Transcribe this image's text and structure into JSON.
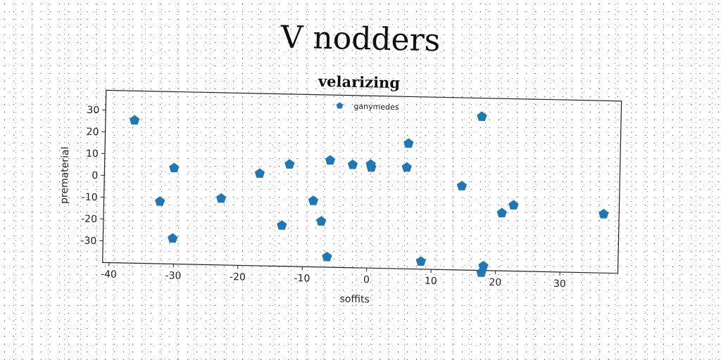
{
  "page": {
    "title": "V nodders"
  },
  "chart_data": {
    "type": "scatter",
    "title": "velarizing",
    "xlabel": "soffits",
    "ylabel": "prematerial",
    "xlim": [
      -41,
      39
    ],
    "ylim": [
      -40,
      39
    ],
    "xticks": [
      -40,
      -30,
      -20,
      -10,
      0,
      10,
      20,
      30
    ],
    "yticks": [
      -30,
      -20,
      -10,
      0,
      10,
      20,
      30
    ],
    "grid": false,
    "legend_position": "top-center",
    "marker": "pentagon",
    "series": [
      {
        "name": "ganymedes",
        "color": "#1f77b4",
        "points": [
          {
            "x": -36.5,
            "y": 25.5
          },
          {
            "x": -30.2,
            "y": 4.0
          },
          {
            "x": -32.3,
            "y": -11.5
          },
          {
            "x": -30.2,
            "y": -28.3
          },
          {
            "x": -22.8,
            "y": -9.5
          },
          {
            "x": -16.9,
            "y": 2.3
          },
          {
            "x": -12.3,
            "y": 6.8
          },
          {
            "x": -13.3,
            "y": -21.3
          },
          {
            "x": -8.5,
            "y": -9.7
          },
          {
            "x": -7.2,
            "y": -19.0
          },
          {
            "x": -6.0,
            "y": 9.0
          },
          {
            "x": -6.2,
            "y": -35.3
          },
          {
            "x": -2.5,
            "y": 7.2
          },
          {
            "x": 0.3,
            "y": 7.5
          },
          {
            "x": 0.4,
            "y": 6.2
          },
          {
            "x": 6.1,
            "y": 17.5
          },
          {
            "x": 5.9,
            "y": 6.5
          },
          {
            "x": 8.4,
            "y": -36.5
          },
          {
            "x": 14.5,
            "y": -1.5
          },
          {
            "x": 17.4,
            "y": 30.5
          },
          {
            "x": 18.1,
            "y": -38.0
          },
          {
            "x": 17.8,
            "y": -41.0
          },
          {
            "x": 20.8,
            "y": -13.5
          },
          {
            "x": 22.6,
            "y": -9.8
          },
          {
            "x": 36.6,
            "y": -13.0
          }
        ]
      }
    ]
  }
}
